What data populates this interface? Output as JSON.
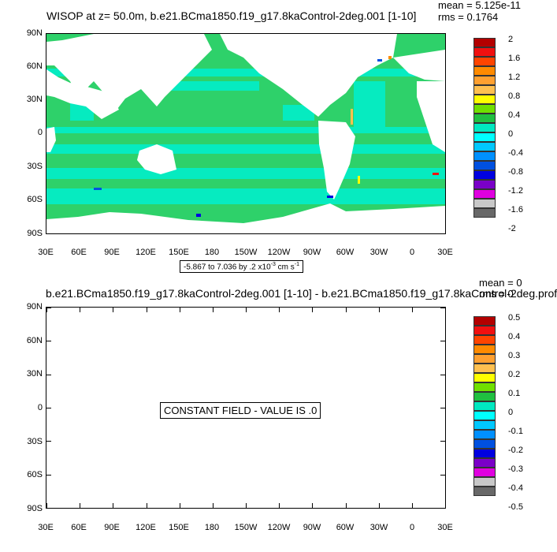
{
  "panel1": {
    "title": "WISOP at z=  50.0m, b.e21.BCma1850.f19_g17.8kaControl-2deg.001 [1-10]",
    "mean": "mean = 5.125e-11",
    "rms": "rms = 0.1764",
    "info": "-5.867 to 7.036 by .2 x10",
    "info_exp": "-3",
    "info_units": " cm s",
    "info_units_exp": "-1",
    "colorbar_labels": [
      "2",
      "1.6",
      "1.2",
      "0.8",
      "0.4",
      "0",
      "-0.4",
      "-0.8",
      "-1.2",
      "-1.6",
      "-2"
    ],
    "ocean_color": "#2ed16a",
    "ocean_alt_color": "#00f0d0",
    "land_color": "#ffffff"
  },
  "panel2": {
    "title": "b.e21.BCma1850.f19_g17.8kaControl-2deg.001 [1-10] - b.e21.BCma1850.f19_g17.8kaControl-2deg.prof",
    "mean": "mean = 0",
    "rms": "rms = 0",
    "constant_label": "CONSTANT FIELD - VALUE IS .0",
    "colorbar_labels": [
      "0.5",
      "0.4",
      "0.3",
      "0.2",
      "0.1",
      "0",
      "-0.1",
      "-0.2",
      "-0.3",
      "-0.4",
      "-0.5"
    ]
  },
  "axes": {
    "lat_labels": [
      "90N",
      "60N",
      "30N",
      "0",
      "30S",
      "60S",
      "90S"
    ],
    "lon_labels": [
      "30E",
      "60E",
      "90E",
      "120E",
      "150E",
      "180",
      "150W",
      "120W",
      "90W",
      "60W",
      "30W",
      "0",
      "30E"
    ]
  },
  "colorbar_colors": [
    "#b30000",
    "#f01010",
    "#ff4400",
    "#ff8a00",
    "#ffa030",
    "#ffc050",
    "#ffff00",
    "#70e000",
    "#20c040",
    "#00e8c0",
    "#00ffff",
    "#00c8ff",
    "#0090ff",
    "#0050e0",
    "#0000e0",
    "#7a00c8",
    "#e000e0",
    "#c8c8c8",
    "#686868"
  ]
}
